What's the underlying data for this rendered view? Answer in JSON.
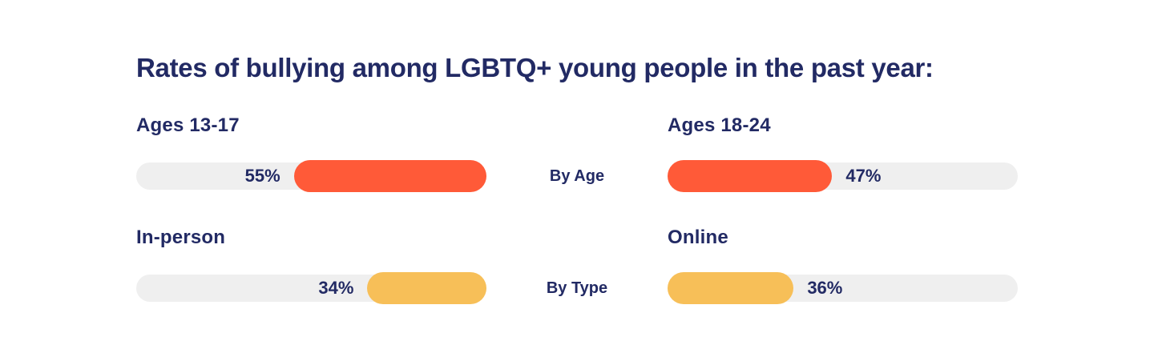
{
  "title": "Rates of bullying among LGBTQ+ young people in the past year:",
  "colors": {
    "navy_text": "#222A64",
    "orange_fill": "#FF5A38",
    "yellow_fill": "#F7BF58",
    "track_gray": "#EFEFEF",
    "background": "#FFFFFF"
  },
  "chart_data": {
    "type": "bar",
    "title": "Rates of bullying among LGBTQ+ young people in the past year:",
    "unit": "percent",
    "value_range": [
      0,
      100
    ],
    "layout": "two-column pill bars with center group labels; left-column fills anchored right, right-column fills anchored left",
    "groups": [
      {
        "group_label": "By Age",
        "color": "#FF5A38",
        "bars": [
          {
            "label": "Ages 13-17",
            "value": 55,
            "value_label": "55%",
            "fill_anchor": "right"
          },
          {
            "label": "Ages 18-24",
            "value": 47,
            "value_label": "47%",
            "fill_anchor": "left"
          }
        ]
      },
      {
        "group_label": "By Type",
        "color": "#F7BF58",
        "bars": [
          {
            "label": "In-person",
            "value": 34,
            "value_label": "34%",
            "fill_anchor": "right"
          },
          {
            "label": "Online",
            "value": 36,
            "value_label": "36%",
            "fill_anchor": "left"
          }
        ]
      }
    ]
  }
}
